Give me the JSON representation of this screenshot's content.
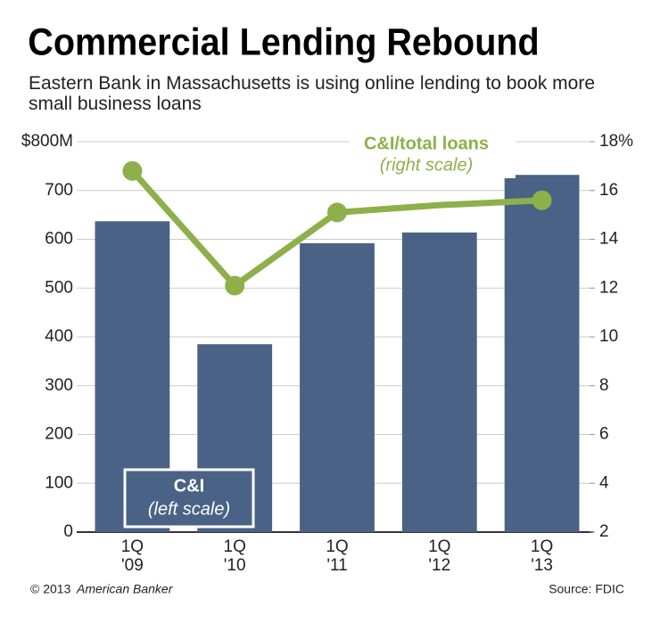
{
  "chart_data": {
    "type": "bar_line",
    "title": "Commercial Lending Rebound",
    "subtitle": "Eastern Bank in Massachusetts is using online lending to book more small business loans",
    "categories": [
      "1Q\n'09",
      "1Q\n'10",
      "1Q\n'11",
      "1Q\n'12",
      "1Q\n'13"
    ],
    "series": [
      {
        "name": "C&I",
        "name_note": "(left scale)",
        "color": "#4a6285",
        "type": "bar",
        "values": [
          637,
          385,
          592,
          614,
          732
        ]
      },
      {
        "name": "C&I/total loans",
        "name_note": "(right scale)",
        "color": "#8db04a",
        "type": "line",
        "axis": "y2",
        "values": [
          16.8,
          12.1,
          15.1,
          15.4,
          15.6
        ],
        "markers": [
          true,
          true,
          true,
          false,
          true
        ]
      }
    ],
    "ylim": [
      0,
      800
    ],
    "yticks": [
      0,
      100,
      200,
      300,
      400,
      500,
      600,
      700,
      {
        "value": 800,
        "label": "$800M"
      }
    ],
    "y2lim": [
      2,
      18
    ],
    "y2ticks": [
      2,
      4,
      6,
      8,
      10,
      12,
      14,
      16,
      {
        "value": 18,
        "label": "18%"
      }
    ],
    "grid": true,
    "copyright": "© 2013",
    "publisher": "American Banker",
    "source": "Source: FDIC"
  }
}
